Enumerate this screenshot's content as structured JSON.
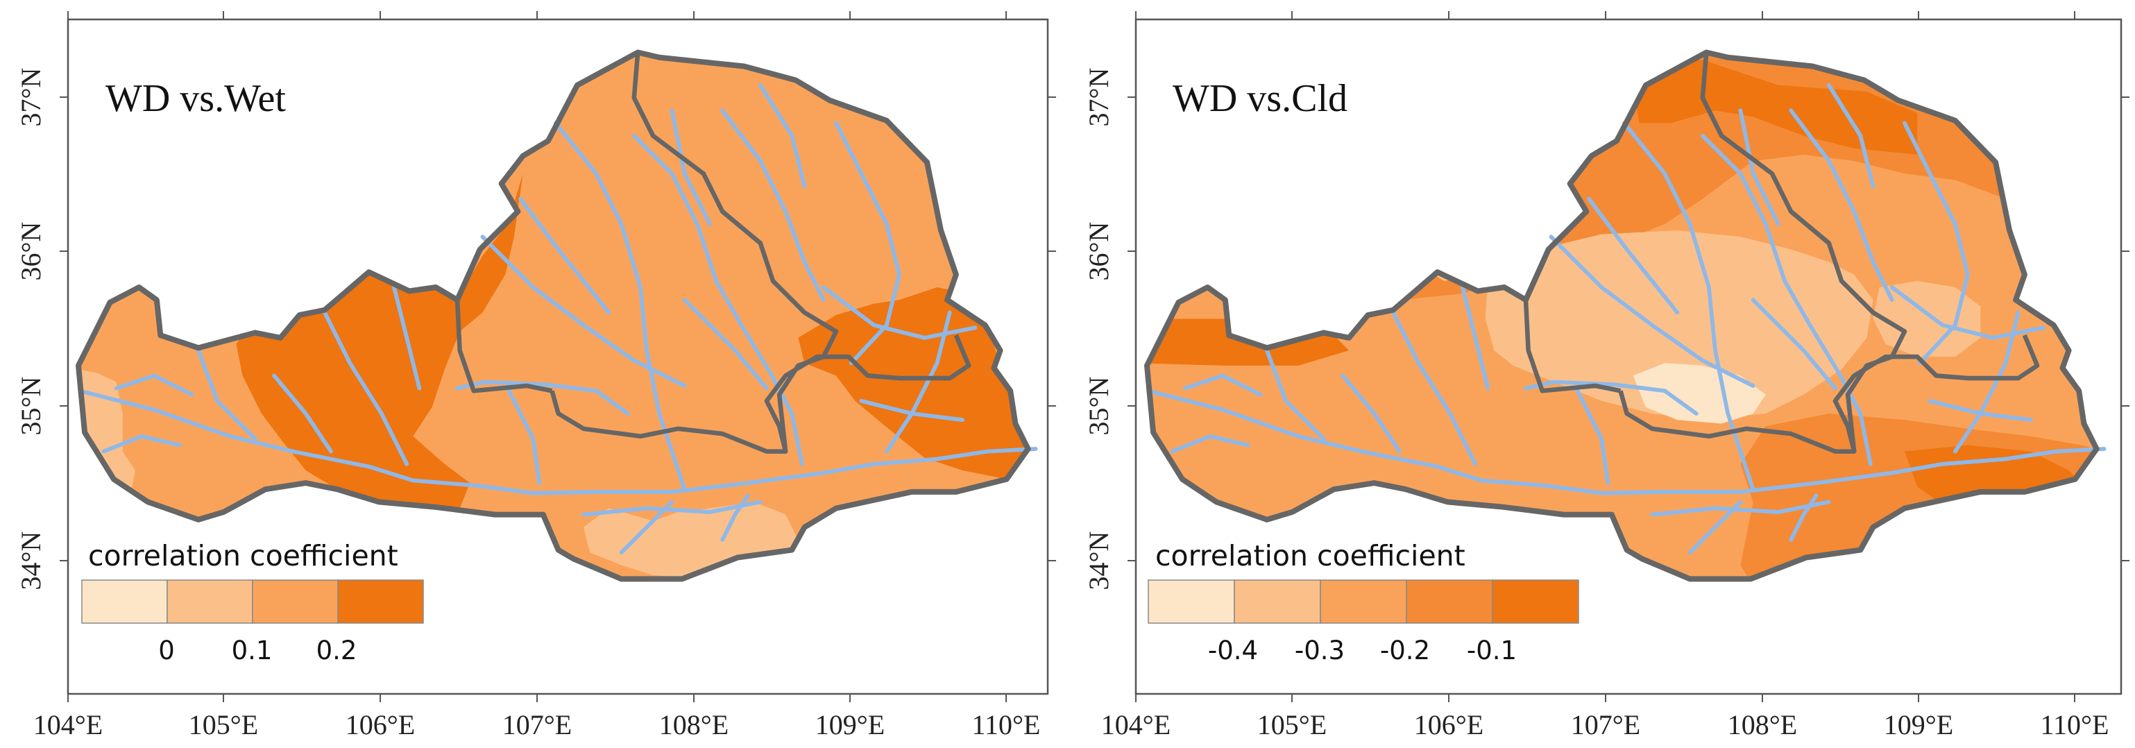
{
  "colors": {
    "c1": "#fde6c8",
    "c2": "#fbc08a",
    "c3": "#f9a35a",
    "c4": "#f48a35",
    "c5": "#ee7510",
    "boundary": "#666666",
    "river": "#8fb8e8",
    "frame": "#555555"
  },
  "maps": [
    {
      "title": "WD vs.Wet",
      "x_ticks": [
        "104°E",
        "105°E",
        "106°E",
        "107°E",
        "108°E",
        "109°E",
        "110°E"
      ],
      "y_ticks": [
        "37°N",
        "36°N",
        "35°N",
        "34°N"
      ],
      "legend": {
        "title": "correlation coefficient",
        "breaks": [
          "0",
          "0.1",
          "0.2"
        ],
        "classes": 4
      }
    },
    {
      "title": "WD vs.Cld",
      "x_ticks": [
        "104°E",
        "105°E",
        "106°E",
        "107°E",
        "108°E",
        "109°E",
        "110°E"
      ],
      "y_ticks": [
        "37°N",
        "36°N",
        "35°N",
        "34°N"
      ],
      "legend": {
        "title": "correlation coefficient",
        "breaks": [
          "-0.4",
          "-0.3",
          "-0.2",
          "-0.1"
        ],
        "classes": 5
      }
    }
  ]
}
